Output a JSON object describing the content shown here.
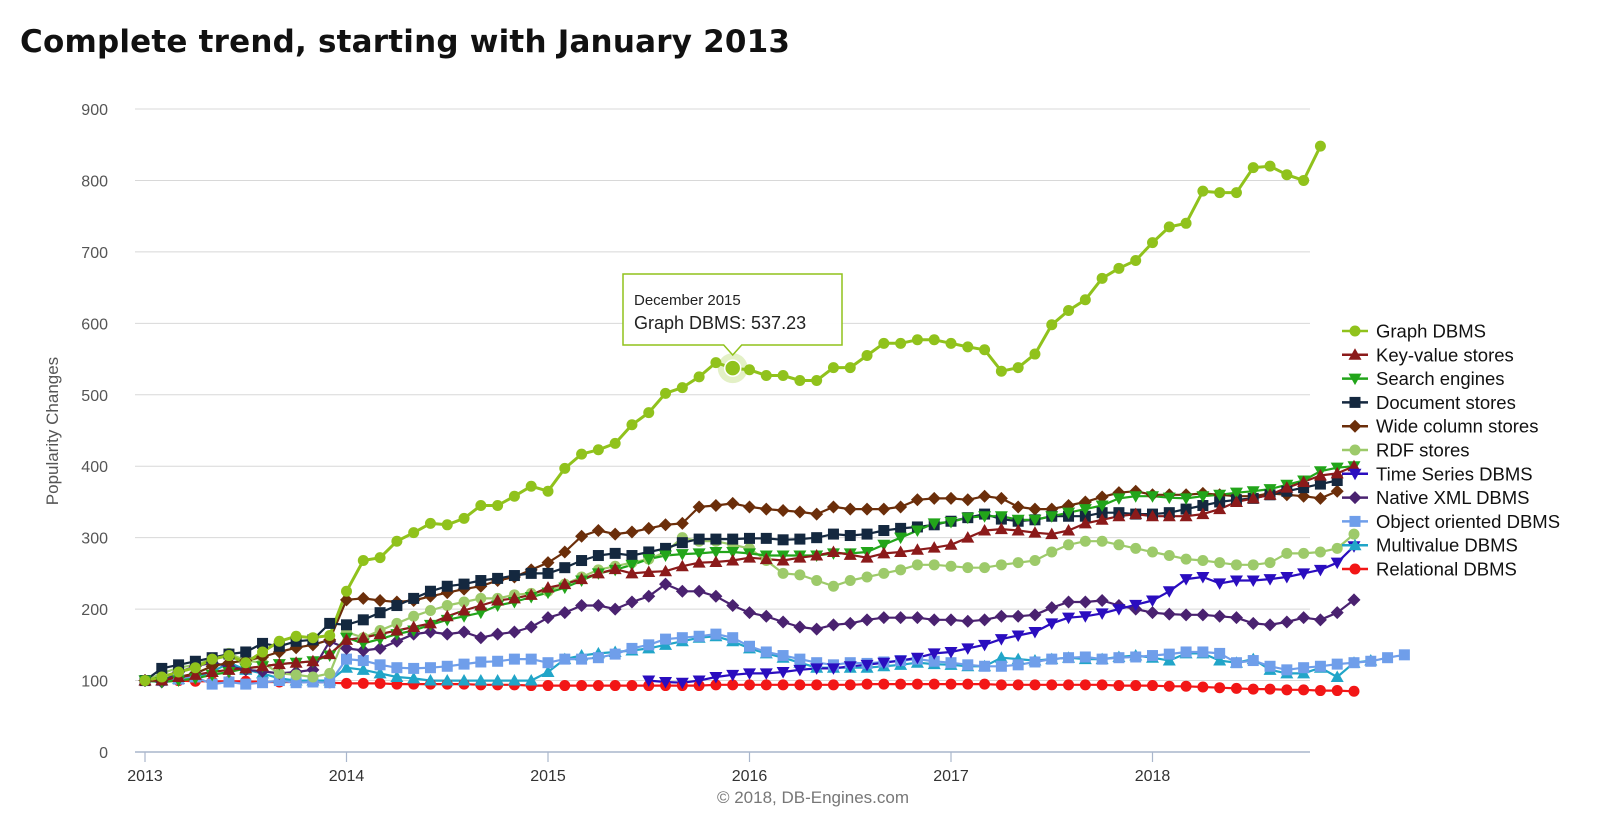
{
  "chart_data": {
    "type": "line",
    "title": "Complete trend, starting with January 2013",
    "ylabel": "Popularity Changes",
    "credit": "© 2018, DB-Engines.com",
    "yticks": [
      "0",
      "100",
      "200",
      "300",
      "400",
      "500",
      "600",
      "700",
      "800",
      "900"
    ],
    "xticks": [
      "2013",
      "2014",
      "2015",
      "2016",
      "2017",
      "2018"
    ],
    "ylim": [
      0,
      900
    ],
    "xlim": [
      2013.0,
      2018.75
    ],
    "tooltip": {
      "date": "December 2015",
      "text": "Graph DBMS: 537.23",
      "series_index": 0,
      "point_index": 35,
      "value": 537.23
    },
    "legend_position": "right",
    "series": [
      {
        "name": "Graph DBMS",
        "color": "#90c21c",
        "marker": "circle",
        "start": 0,
        "values": [
          100,
          105,
          112,
          118,
          130,
          135,
          125,
          140,
          155,
          162,
          160,
          163,
          225,
          268,
          272,
          295,
          307,
          320,
          318,
          327,
          345,
          345,
          358,
          372,
          365,
          397,
          417,
          423,
          432,
          458,
          475,
          502,
          510,
          525,
          545,
          537.23,
          535,
          527,
          527,
          520,
          520,
          538,
          538,
          555,
          572,
          572,
          577,
          577,
          572,
          567,
          563,
          533,
          538,
          557,
          598,
          618,
          633,
          663,
          677,
          688,
          713,
          735,
          740,
          785,
          783,
          783,
          818,
          820,
          808,
          800,
          848
        ]
      },
      {
        "name": "Key-value stores",
        "color": "#8b1a1a",
        "marker": "triangle",
        "start": 0,
        "values": [
          100,
          100,
          105,
          108,
          112,
          115,
          117,
          120,
          123,
          125,
          127,
          137,
          157,
          160,
          165,
          170,
          175,
          180,
          190,
          198,
          205,
          212,
          215,
          220,
          230,
          235,
          242,
          250,
          256,
          250,
          252,
          253,
          260,
          265,
          266,
          268,
          272,
          270,
          268,
          272,
          275,
          280,
          276,
          272,
          278,
          280,
          283,
          286,
          290,
          300,
          310,
          312,
          310,
          307,
          305,
          310,
          320,
          325,
          330,
          333,
          330,
          330,
          330,
          333,
          340,
          350,
          355,
          360,
          370,
          378,
          387,
          390,
          400
        ]
      },
      {
        "name": "Search engines",
        "color": "#22a51a",
        "marker": "triangle-down",
        "start": 0,
        "values": [
          100,
          98,
          100,
          103,
          108,
          112,
          117,
          120,
          123,
          125,
          127,
          135,
          160,
          152,
          158,
          165,
          170,
          178,
          185,
          190,
          195,
          205,
          210,
          217,
          223,
          230,
          240,
          250,
          255,
          262,
          270,
          275,
          277,
          278,
          280,
          280,
          278,
          275,
          275,
          275,
          275,
          278,
          278,
          280,
          290,
          300,
          310,
          320,
          322,
          328,
          330,
          330,
          325,
          325,
          330,
          335,
          340,
          345,
          355,
          358,
          358,
          356,
          355,
          358,
          360,
          363,
          365,
          368,
          374,
          380,
          393,
          398,
          400
        ]
      },
      {
        "name": "Document stores",
        "color": "#14283f",
        "marker": "square",
        "start": 0,
        "values": [
          100,
          117,
          122,
          127,
          132,
          137,
          140,
          152,
          148,
          155,
          157,
          180,
          178,
          185,
          195,
          205,
          215,
          225,
          232,
          235,
          240,
          243,
          247,
          250,
          250,
          258,
          268,
          275,
          278,
          275,
          280,
          285,
          293,
          298,
          298,
          298,
          299,
          299,
          297,
          298,
          300,
          305,
          303,
          305,
          310,
          313,
          315,
          318,
          323,
          328,
          333,
          326,
          323,
          325,
          330,
          330,
          330,
          335,
          335,
          333,
          333,
          335,
          340,
          345,
          350,
          353,
          355,
          360,
          365,
          370,
          375,
          380
        ]
      },
      {
        "name": "Wide column stores",
        "color": "#6b2e0a",
        "marker": "diamond",
        "start": 0,
        "values": [
          100,
          100,
          105,
          110,
          120,
          125,
          128,
          133,
          140,
          146,
          150,
          157,
          213,
          215,
          212,
          210,
          212,
          218,
          223,
          228,
          232,
          240,
          245,
          255,
          265,
          280,
          302,
          310,
          305,
          308,
          313,
          318,
          320,
          343,
          345,
          348,
          343,
          340,
          338,
          336,
          333,
          343,
          340,
          340,
          340,
          343,
          353,
          355,
          355,
          353,
          358,
          355,
          343,
          340,
          340,
          345,
          350,
          357,
          363,
          365,
          360,
          360,
          360,
          362,
          360,
          358,
          358,
          362,
          360,
          358,
          355,
          365
        ]
      },
      {
        "name": "RDF stores",
        "color": "#9dca6a",
        "marker": "circle",
        "start": 0,
        "values": [
          100,
          110,
          118,
          122,
          130,
          138,
          128,
          125,
          110,
          108,
          105,
          110,
          168,
          160,
          170,
          180,
          190,
          198,
          205,
          210,
          215,
          215,
          220,
          222,
          225,
          235,
          245,
          255,
          260,
          265,
          270,
          280,
          300,
          295,
          295,
          290,
          285,
          268,
          250,
          248,
          240,
          232,
          240,
          245,
          250,
          255,
          262,
          262,
          260,
          258,
          258,
          262,
          265,
          268,
          280,
          290,
          295,
          295,
          290,
          285,
          280,
          275,
          270,
          268,
          265,
          262,
          262,
          265,
          278,
          278,
          280,
          285,
          305
        ]
      },
      {
        "name": "Time Series DBMS",
        "color": "#2a0dbf",
        "marker": "triangle-down",
        "start": 24,
        "values": [
          null,
          null,
          null,
          null,
          null,
          null,
          null,
          null,
          null,
          null,
          null,
          null,
          null,
          null,
          null,
          null,
          null,
          null,
          null,
          null,
          null,
          null,
          null,
          null,
          null,
          null,
          null,
          null,
          null,
          null,
          100,
          98,
          97,
          100,
          105,
          108,
          110,
          110,
          112,
          115,
          117,
          117,
          120,
          122,
          125,
          128,
          132,
          138,
          140,
          145,
          150,
          158,
          163,
          168,
          180,
          188,
          190,
          194,
          200,
          206,
          212,
          225,
          242,
          245,
          236,
          240,
          240,
          242,
          245,
          250,
          255,
          265,
          288
        ]
      },
      {
        "name": "Native XML DBMS",
        "color": "#4a2270",
        "marker": "diamond",
        "start": 0,
        "values": [
          100,
          98,
          112,
          120,
          125,
          120,
          115,
          113,
          110,
          112,
          115,
          155,
          145,
          142,
          145,
          155,
          165,
          168,
          165,
          168,
          160,
          165,
          168,
          175,
          188,
          195,
          205,
          205,
          200,
          210,
          218,
          235,
          225,
          225,
          218,
          205,
          195,
          190,
          182,
          175,
          172,
          178,
          180,
          185,
          188,
          188,
          188,
          185,
          185,
          183,
          185,
          190,
          190,
          192,
          202,
          210,
          210,
          212,
          205,
          200,
          195,
          193,
          192,
          192,
          190,
          188,
          180,
          178,
          182,
          188,
          185,
          195,
          213
        ]
      },
      {
        "name": "Object oriented DBMS",
        "color": "#6f9eea",
        "marker": "square",
        "start": 0,
        "values": [
          100,
          100,
          102,
          105,
          95,
          98,
          95,
          97,
          100,
          97,
          98,
          97,
          130,
          128,
          122,
          118,
          117,
          118,
          120,
          123,
          126,
          127,
          130,
          130,
          125,
          130,
          130,
          132,
          137,
          145,
          150,
          158,
          160,
          162,
          165,
          160,
          148,
          140,
          135,
          130,
          125,
          122,
          125,
          124,
          126,
          128,
          130,
          127,
          125,
          122,
          120,
          120,
          122,
          126,
          130,
          132,
          133,
          130,
          132,
          133,
          135,
          137,
          140,
          140,
          138,
          125,
          128,
          120,
          115,
          118,
          120,
          123,
          125,
          127,
          132,
          136
        ]
      },
      {
        "name": "Multivalue DBMS",
        "color": "#21a5c8",
        "marker": "triangle",
        "start": 0,
        "values": [
          100,
          100,
          102,
          105,
          112,
          125,
          115,
          110,
          103,
          100,
          100,
          100,
          118,
          115,
          110,
          105,
          103,
          100,
          100,
          100,
          100,
          100,
          100,
          100,
          112,
          130,
          135,
          138,
          140,
          142,
          145,
          150,
          155,
          160,
          162,
          155,
          145,
          138,
          132,
          125,
          118,
          118,
          118,
          118,
          120,
          122,
          125,
          123,
          122,
          120,
          120,
          132,
          130,
          128,
          130,
          132,
          130,
          130,
          133,
          135,
          132,
          128,
          138,
          138,
          128,
          125,
          130,
          115,
          110,
          110,
          118,
          105,
          125,
          128
        ]
      },
      {
        "name": "Relational DBMS",
        "color": "#f21616",
        "marker": "circle",
        "start": 0,
        "values": [
          100,
          100,
          100,
          99,
          99,
          99,
          99,
          98,
          98,
          98,
          98,
          97,
          96,
          96,
          96,
          95,
          95,
          95,
          95,
          95,
          94,
          94,
          94,
          93,
          93,
          93,
          93,
          93,
          93,
          93,
          93,
          93,
          93,
          93,
          94,
          94,
          94,
          94,
          94,
          94,
          94,
          94,
          94,
          95,
          95,
          95,
          95,
          95,
          95,
          95,
          95,
          94,
          94,
          94,
          94,
          94,
          94,
          94,
          93,
          93,
          93,
          92,
          92,
          91,
          90,
          89,
          88,
          88,
          87,
          87,
          86,
          86,
          85
        ]
      }
    ]
  }
}
